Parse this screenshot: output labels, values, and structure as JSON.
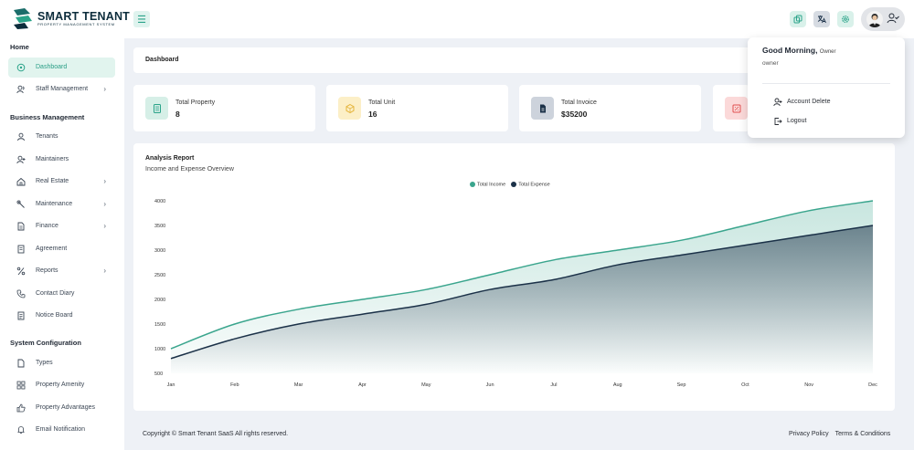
{
  "app": {
    "logo_title": "SMART TENANT",
    "logo_subtitle": "PROPERTY MANAGEMENT SYSTEM"
  },
  "colors": {
    "accent": "#2aa389",
    "dark": "#1b3148",
    "income": "#3aa58d",
    "expense": "#1b3148"
  },
  "topbar": {
    "icons": [
      "menu-icon",
      "copy-icon",
      "translate-icon",
      "settings-icon",
      "user-avatar",
      "user-check-icon"
    ]
  },
  "sidebar": {
    "sections": [
      {
        "title": "Home"
      },
      {
        "title": "Business Management"
      },
      {
        "title": "System Configuration"
      }
    ],
    "items": [
      {
        "label": "Dashboard",
        "icon": "dashboard-icon"
      },
      {
        "label": "Staff Management",
        "icon": "staff-icon"
      },
      {
        "label": "Tenants",
        "icon": "tenant-icon"
      },
      {
        "label": "Maintainers",
        "icon": "maintainer-icon"
      },
      {
        "label": "Real Estate",
        "icon": "building-icon"
      },
      {
        "label": "Maintenance",
        "icon": "wrench-icon"
      },
      {
        "label": "Finance",
        "icon": "document-icon"
      },
      {
        "label": "Agreement",
        "icon": "agreement-icon"
      },
      {
        "label": "Reports",
        "icon": "reports-icon"
      },
      {
        "label": "Contact Diary",
        "icon": "phone-icon"
      },
      {
        "label": "Notice Board",
        "icon": "notice-icon"
      },
      {
        "label": "Types",
        "icon": "types-icon"
      },
      {
        "label": "Property Amenity",
        "icon": "grid-icon"
      },
      {
        "label": "Property Advantages",
        "icon": "thumbs-up-icon"
      },
      {
        "label": "Email Notification",
        "icon": "bell-icon"
      }
    ]
  },
  "breadcrumb": {
    "label": "Dashboard"
  },
  "stats": [
    {
      "label": "Total Property",
      "value": "8",
      "icon": "property-icon",
      "bg": "#d6efe7",
      "color": "#2aa389"
    },
    {
      "label": "Total Unit",
      "value": "16",
      "icon": "unit-icon",
      "bg": "#fcefc7",
      "color": "#e5b43a"
    },
    {
      "label": "Total Invoice",
      "value": "$35200",
      "icon": "invoice-icon",
      "bg": "#cdd3dc",
      "color": "#1b3148"
    },
    {
      "label": "",
      "value": "",
      "icon": "expense-icon",
      "bg": "#fbd9d9",
      "color": "#e0504f"
    }
  ],
  "chart": {
    "title": "Analysis Report",
    "subtitle": "Income and Expense Overview"
  },
  "chart_data": {
    "type": "area",
    "categories": [
      "Jan",
      "Feb",
      "Mar",
      "Apr",
      "May",
      "Jun",
      "Jul",
      "Aug",
      "Sep",
      "Oct",
      "Nov",
      "Dec"
    ],
    "series": [
      {
        "name": "Total Income",
        "values": [
          1000,
          1500,
          1800,
          2000,
          2200,
          2500,
          2800,
          3000,
          3200,
          3500,
          3800,
          4000
        ]
      },
      {
        "name": "Total Expense",
        "values": [
          800,
          1200,
          1500,
          1700,
          1900,
          2200,
          2400,
          2700,
          2900,
          3100,
          3300,
          3500
        ]
      }
    ],
    "yticks": [
      "4000",
      "3500",
      "3000",
      "2500",
      "2000",
      "1500",
      "1000",
      "500"
    ],
    "ylim": [
      500,
      4000
    ],
    "legend_position": "top-center",
    "grid": false
  },
  "footer": {
    "copyright": "Copyright © Smart Tenant SaaS All rights reserved.",
    "privacy": "Privacy Policy",
    "terms": "Terms & Conditions"
  },
  "user_menu": {
    "greeting": "Good Morning,",
    "greeting_role": "Owner",
    "role": "owner",
    "items": [
      {
        "label": "Account Delete",
        "icon": "user-delete-icon"
      },
      {
        "label": "Logout",
        "icon": "logout-icon"
      }
    ]
  }
}
